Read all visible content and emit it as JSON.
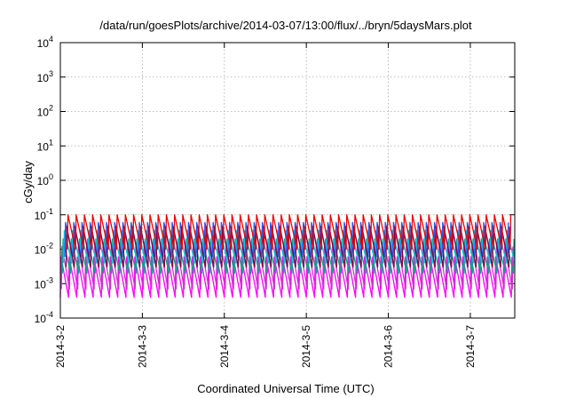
{
  "chart_data": {
    "type": "line",
    "title": "/data/run/goesPlots/archive/2014-03-07/13:00/flux/../bryn/5daysMars.plot",
    "xlabel": "Coordinated Universal Time (UTC)",
    "ylabel": "cGy/day",
    "y_scale": "log",
    "ylim": [
      0.0001,
      10000
    ],
    "y_ticks": [
      {
        "value": 0.0001,
        "base": "10",
        "exp": "-4"
      },
      {
        "value": 0.001,
        "base": "10",
        "exp": "-3"
      },
      {
        "value": 0.01,
        "base": "10",
        "exp": "-2"
      },
      {
        "value": 0.1,
        "base": "10",
        "exp": "-1"
      },
      {
        "value": 1,
        "base": "10",
        "exp": "0"
      },
      {
        "value": 10,
        "base": "10",
        "exp": "1"
      },
      {
        "value": 100,
        "base": "10",
        "exp": "2"
      },
      {
        "value": 1000,
        "base": "10",
        "exp": "3"
      },
      {
        "value": 10000,
        "base": "10",
        "exp": "4"
      }
    ],
    "x_ticks": [
      "2014-3-2",
      "2014-3-3",
      "2014-3-4",
      "2014-3-5",
      "2014-3-6",
      "2014-3-7"
    ],
    "xlim": [
      "2014-03-02 00:00",
      "2014-03-07 13:00"
    ],
    "grid": true,
    "series": [
      {
        "color": "#ff00ff",
        "peak": 0.006,
        "trough": 0.0004,
        "phase": 0.0
      },
      {
        "color": "#cc33cc",
        "peak": 0.012,
        "trough": 0.0007,
        "phase": 0.12
      },
      {
        "color": "#00aa88",
        "peak": 0.02,
        "trough": 0.002,
        "phase": 0.25
      },
      {
        "color": "#00ccdd",
        "peak": 0.035,
        "trough": 0.004,
        "phase": 0.4
      },
      {
        "color": "#2255ff",
        "peak": 0.06,
        "trough": 0.006,
        "phase": 0.55
      },
      {
        "color": "#880044",
        "peak": 0.045,
        "trough": 0.003,
        "phase": 0.7
      },
      {
        "color": "#ee0000",
        "peak": 0.1,
        "trough": 0.01,
        "phase": 0.85
      }
    ],
    "cycle_days": 0.1
  }
}
